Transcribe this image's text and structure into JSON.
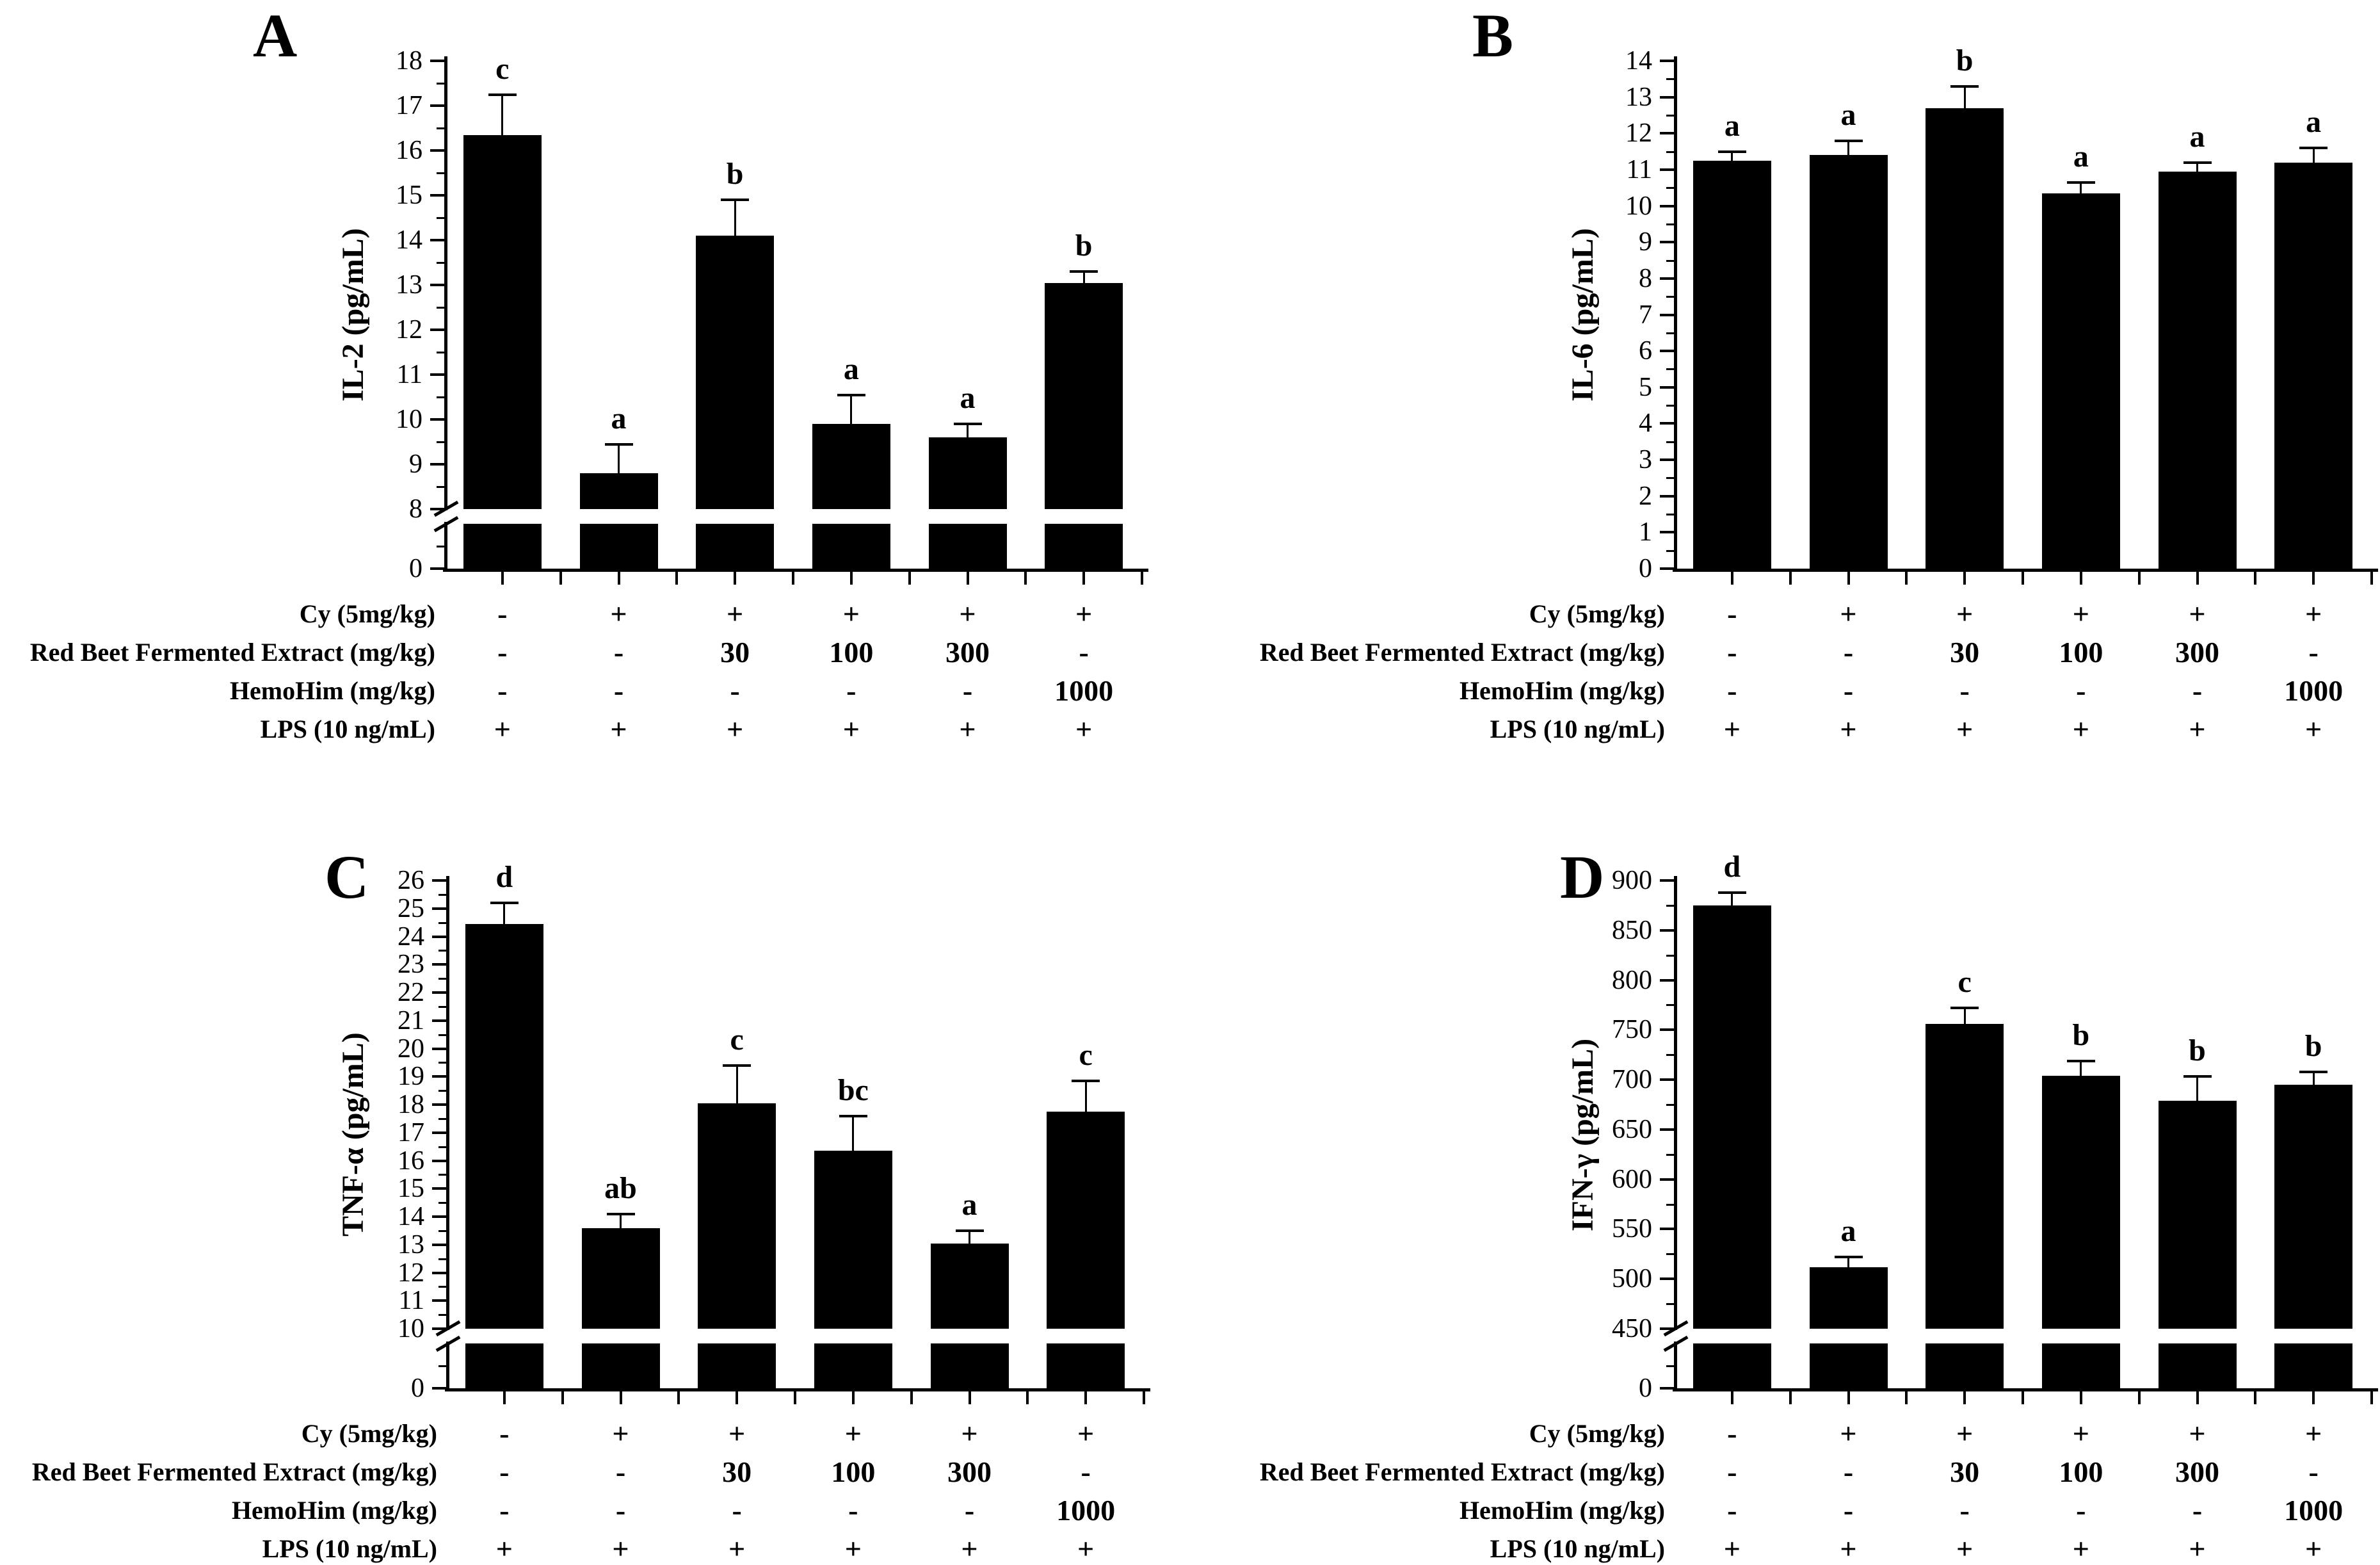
{
  "background_color": "#ffffff",
  "bar_color": "#000000",
  "chart_data": [
    {
      "label": "A",
      "type": "bar",
      "ylabel": "IL-2 (pg/mL)",
      "ylim": [
        8,
        18
      ],
      "ytick_step": 1,
      "yminor_step": 0.5,
      "ytick_labels": [
        "18",
        "17",
        "16",
        "15",
        "14",
        "13",
        "12",
        "11",
        "10",
        "9",
        "8"
      ],
      "axis_break": true,
      "zero_label": "0",
      "values": [
        16.35,
        8.8,
        14.1,
        9.9,
        9.6,
        13.05
      ],
      "errors": [
        0.9,
        0.65,
        0.8,
        0.65,
        0.3,
        0.25
      ],
      "sig_labels": [
        "c",
        "a",
        "b",
        "a",
        "a",
        "b"
      ],
      "x_table_rows": [
        {
          "label": "Cy (5mg/kg)",
          "values": [
            "-",
            "+",
            "+",
            "+",
            "+",
            "+"
          ]
        },
        {
          "label": "Red Beet Fermented Extract (mg/kg)",
          "values": [
            "-",
            "-",
            "30",
            "100",
            "300",
            "-"
          ]
        },
        {
          "label": "HemoHim (mg/kg)",
          "values": [
            "-",
            "-",
            "-",
            "-",
            "-",
            "1000"
          ]
        },
        {
          "label": "LPS (10 ng/mL)",
          "values": [
            "+",
            "+",
            "+",
            "+",
            "+",
            "+"
          ]
        }
      ]
    },
    {
      "label": "B",
      "type": "bar",
      "ylabel": "IL-6 (pg/mL)",
      "ylim": [
        0,
        14
      ],
      "ytick_step": 1,
      "yminor_step": 0.5,
      "ytick_labels": [
        "14",
        "13",
        "12",
        "11",
        "10",
        "9",
        "8",
        "7",
        "6",
        "5",
        "4",
        "3",
        "2",
        "1",
        "0"
      ],
      "axis_break": false,
      "zero_label": null,
      "values": [
        11.25,
        11.4,
        12.7,
        10.35,
        10.95,
        11.2
      ],
      "errors": [
        0.25,
        0.4,
        0.6,
        0.3,
        0.25,
        0.4
      ],
      "sig_labels": [
        "a",
        "a",
        "b",
        "a",
        "a",
        "a"
      ],
      "x_table_rows": [
        {
          "label": "Cy (5mg/kg)",
          "values": [
            "-",
            "+",
            "+",
            "+",
            "+",
            "+"
          ]
        },
        {
          "label": "Red Beet Fermented Extract (mg/kg)",
          "values": [
            "-",
            "-",
            "30",
            "100",
            "300",
            "-"
          ]
        },
        {
          "label": "HemoHim (mg/kg)",
          "values": [
            "-",
            "-",
            "-",
            "-",
            "-",
            "1000"
          ]
        },
        {
          "label": "LPS (10 ng/mL)",
          "values": [
            "+",
            "+",
            "+",
            "+",
            "+",
            "+"
          ]
        }
      ]
    },
    {
      "label": "C",
      "type": "bar",
      "ylabel": "TNF-α (pg/mL)",
      "ylim": [
        10,
        26
      ],
      "ytick_step": 1,
      "yminor_step": 0.5,
      "ytick_labels": [
        "26",
        "25",
        "24",
        "23",
        "22",
        "21",
        "20",
        "19",
        "18",
        "17",
        "16",
        "15",
        "14",
        "13",
        "12",
        "11",
        "10"
      ],
      "axis_break": true,
      "zero_label": "0",
      "values": [
        24.45,
        13.6,
        18.05,
        16.35,
        13.05,
        17.75
      ],
      "errors": [
        0.75,
        0.5,
        1.35,
        1.25,
        0.45,
        1.1
      ],
      "sig_labels": [
        "d",
        "ab",
        "c",
        "bc",
        "a",
        "c"
      ],
      "x_table_rows": [
        {
          "label": "Cy (5mg/kg)",
          "values": [
            "-",
            "+",
            "+",
            "+",
            "+",
            "+"
          ]
        },
        {
          "label": "Red Beet Fermented Extract (mg/kg)",
          "values": [
            "-",
            "-",
            "30",
            "100",
            "300",
            "-"
          ]
        },
        {
          "label": "HemoHim (mg/kg)",
          "values": [
            "-",
            "-",
            "-",
            "-",
            "-",
            "1000"
          ]
        },
        {
          "label": "LPS (10 ng/mL)",
          "values": [
            "+",
            "+",
            "+",
            "+",
            "+",
            "+"
          ]
        }
      ]
    },
    {
      "label": "D",
      "type": "bar",
      "ylabel": "IFN-γ (pg/mL)",
      "ylim": [
        450,
        900
      ],
      "ytick_step": 50,
      "yminor_step": 25,
      "ytick_labels": [
        "900",
        "850",
        "800",
        "750",
        "700",
        "650",
        "600",
        "550",
        "500",
        "450"
      ],
      "axis_break": true,
      "zero_label": "0",
      "values": [
        875,
        512,
        756,
        704,
        679,
        695
      ],
      "errors": [
        13,
        10,
        16,
        15,
        24,
        13
      ],
      "sig_labels": [
        "d",
        "a",
        "c",
        "b",
        "b",
        "b"
      ],
      "x_table_rows": [
        {
          "label": "Cy (5mg/kg)",
          "values": [
            "-",
            "+",
            "+",
            "+",
            "+",
            "+"
          ]
        },
        {
          "label": "Red Beet Fermented Extract (mg/kg)",
          "values": [
            "-",
            "-",
            "30",
            "100",
            "300",
            "-"
          ]
        },
        {
          "label": "HemoHim (mg/kg)",
          "values": [
            "-",
            "-",
            "-",
            "-",
            "-",
            "1000"
          ]
        },
        {
          "label": "LPS (10 ng/mL)",
          "values": [
            "+",
            "+",
            "+",
            "+",
            "+",
            "+"
          ]
        }
      ]
    }
  ]
}
